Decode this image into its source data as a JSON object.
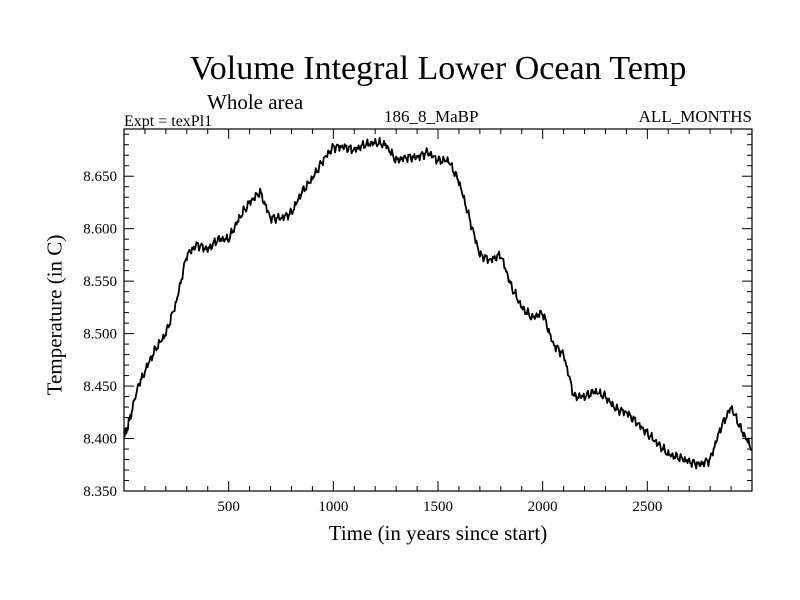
{
  "chart_data": {
    "type": "line",
    "title": "Volume Integral Lower Ocean Temp",
    "subtitle": "Whole area",
    "experiment": "Expt = texPl1",
    "run_label": "186_8_MaBP",
    "months_label": "ALL_MONTHS",
    "xlabel": "Time (in years since start)",
    "ylabel": "Temperature (in C)",
    "xlim": [
      0,
      3000
    ],
    "ylim": [
      8.35,
      8.695
    ],
    "x_ticks": [
      500,
      1000,
      1500,
      2000,
      2500
    ],
    "y_ticks": [
      8.35,
      8.4,
      8.45,
      8.5,
      8.55,
      8.6,
      8.65
    ],
    "y_tick_labels": [
      "8.350",
      "8.400",
      "8.450",
      "8.500",
      "8.550",
      "8.600",
      "8.650"
    ],
    "grid": false,
    "series": [
      {
        "name": "",
        "color": "#000000",
        "x": [
          0,
          30,
          60,
          100,
          150,
          200,
          250,
          300,
          350,
          400,
          450,
          500,
          550,
          600,
          650,
          700,
          750,
          800,
          850,
          900,
          950,
          1000,
          1050,
          1100,
          1150,
          1200,
          1250,
          1300,
          1350,
          1400,
          1450,
          1500,
          1550,
          1600,
          1650,
          1700,
          1750,
          1800,
          1850,
          1900,
          1950,
          2000,
          2050,
          2100,
          2150,
          2200,
          2250,
          2300,
          2350,
          2400,
          2450,
          2500,
          2550,
          2600,
          2650,
          2700,
          2750,
          2800,
          2850,
          2900,
          2950,
          3000
        ],
        "values": [
          8.4,
          8.42,
          8.445,
          8.465,
          8.485,
          8.5,
          8.53,
          8.575,
          8.585,
          8.58,
          8.59,
          8.59,
          8.61,
          8.625,
          8.635,
          8.61,
          8.61,
          8.615,
          8.635,
          8.648,
          8.665,
          8.678,
          8.678,
          8.675,
          8.68,
          8.682,
          8.68,
          8.665,
          8.668,
          8.668,
          8.673,
          8.665,
          8.665,
          8.645,
          8.61,
          8.575,
          8.57,
          8.575,
          8.545,
          8.525,
          8.515,
          8.52,
          8.49,
          8.48,
          8.44,
          8.44,
          8.445,
          8.44,
          8.428,
          8.425,
          8.415,
          8.405,
          8.395,
          8.385,
          8.382,
          8.378,
          8.375,
          8.38,
          8.41,
          8.43,
          8.408,
          8.39
        ]
      }
    ]
  }
}
